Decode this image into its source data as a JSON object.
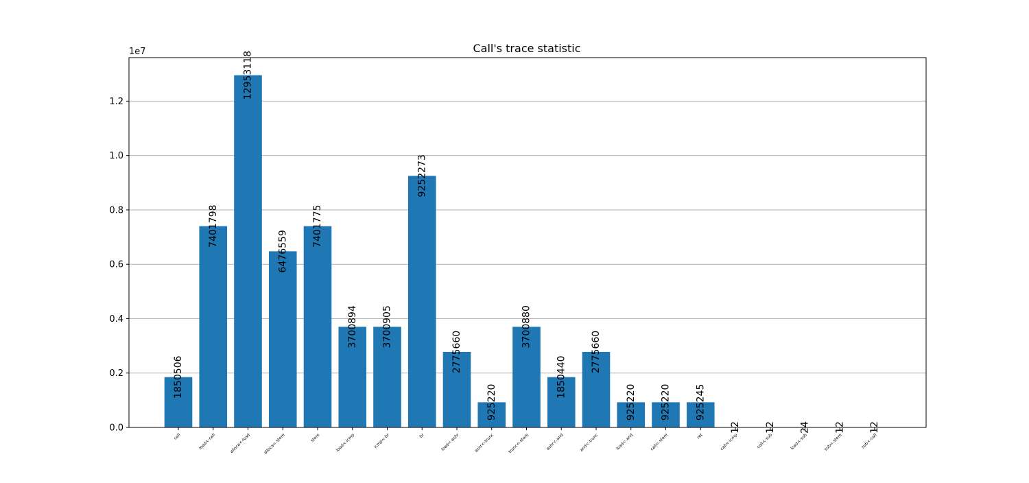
{
  "chart_data": {
    "type": "bar",
    "title": "Call's trace statistic",
    "xlabel": "",
    "ylabel": "",
    "axis_multiplier": "1e7",
    "categories": [
      "call",
      "load<-call",
      "alloca<-load",
      "alloca<-store",
      "store",
      "load<-icmp",
      "icmp<-br",
      "br",
      "load<-ashr",
      "ashr<-trunc",
      "trunc<-store",
      "ashr<-and",
      "and<-trunc",
      "load<-and",
      "call<-store",
      "ret",
      "call<-icmp",
      "call<-sub",
      "load<-sub",
      "sub<-store",
      "sub<-call"
    ],
    "values": [
      1850506,
      7401798,
      12953118,
      6476559,
      7401775,
      3700894,
      3700905,
      9252273,
      2775660,
      925220,
      3700880,
      1850440,
      2775660,
      925220,
      925220,
      925245,
      12,
      12,
      24,
      12,
      12
    ],
    "data_labels": [
      "1850506",
      "7401798",
      "12953118",
      "6476559",
      "7401775",
      "3700894",
      "3700905",
      "9252273",
      "2775660",
      "925220",
      "3700880",
      "1850440",
      "2775660",
      "925220",
      "925220",
      "925245",
      "12",
      "12",
      "24",
      "12",
      "12"
    ],
    "ylim": [
      0,
      13600000
    ],
    "yticks": [
      0,
      2000000,
      4000000,
      6000000,
      8000000,
      10000000,
      12000000
    ],
    "ytick_labels": [
      "0.0",
      "0.2",
      "0.4",
      "0.6",
      "0.8",
      "1.0",
      "1.2"
    ],
    "grid": "horizontal",
    "legend": "none",
    "bar_color": "#1f77b4",
    "grid_color": "#b0b0b0"
  }
}
